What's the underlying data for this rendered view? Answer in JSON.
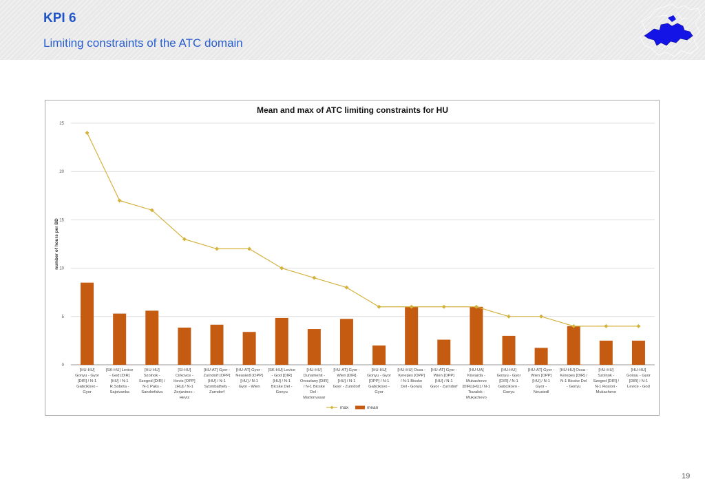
{
  "slide": {
    "title": "KPI 6",
    "subtitle": "Limiting constraints of the ATC domain",
    "page_number": "19"
  },
  "colors": {
    "max_line": "#d4b23e",
    "mean_bar": "#c55a11",
    "title_blue": "#1f55c8",
    "logo_blue": "#1414e6"
  },
  "logo": {
    "icon": "europe-map-icon"
  },
  "chart_data": {
    "type": "bar",
    "title": "Mean and max of ATC limiting constraints for HU",
    "ylabel": "number of hours per BD",
    "xlabel": "",
    "ylim": [
      0,
      25
    ],
    "yticks": [
      0,
      5,
      10,
      15,
      20,
      25
    ],
    "grid": true,
    "legend_position": "bottom",
    "categories": [
      [
        "[HU-HU]",
        "Gonyu - Gyor",
        "[DIR] / N-1",
        "Gabcikovo -",
        "Gyor"
      ],
      [
        "[SK-HU] Levice",
        "- God [DIR]",
        "[HU] / N-1",
        "R.Sobota -",
        "Sajoivanka"
      ],
      [
        "[HU-HU]",
        "Szolnok -",
        "Szeged [DIR] /",
        "N-1 Paks -",
        "Sandorfalva"
      ],
      [
        "[SI-HU]",
        "Cirkovce -",
        "Heviz [OPP]",
        "[HU] / N-1",
        "Zerjavinec -",
        "Heviz"
      ],
      [
        "[HU-AT] Gyor -",
        "Zurndorf [OPP]",
        "[HU] / N-1",
        "Szombathely -",
        "Zurndorf"
      ],
      [
        "[HU-AT] Gyor -",
        "Neusiedl [OPP]",
        "[HU] / N-1",
        "Gyor - Wien"
      ],
      [
        "[SK-HU] Levice",
        "- God [DIR]",
        "[HU] / N-1",
        "Bicske Del -",
        "Gonyu"
      ],
      [
        "[HU-HU]",
        "Dunamenti -",
        "Oroszlany [DIR]",
        "/ N-1 Bicske",
        "Del -",
        "Martonvasar"
      ],
      [
        "[HU-AT] Gyor -",
        "Wien [DIR]",
        "[HU] / N-1",
        "Gyor - Zurndorf"
      ],
      [
        "[HU-HU]",
        "Gonyu - Gyor",
        "[OPP] / N-1",
        "Gabcikovo -",
        "Gyor"
      ],
      [
        "[HU-HU] Ocsa -",
        "Kerepes [OPP]",
        "/ N-1 Bicske",
        "Del - Gonyu"
      ],
      [
        "[HU-AT] Gyor -",
        "Wien [OPP]",
        "[HU] / N-1",
        "Gyor - Zurndorf"
      ],
      [
        "[HU-UA]",
        "Kisvarda -",
        "Mukachevo",
        "[DIR] [HU] / N-1",
        "Tiszalok -",
        "Mukachevo"
      ],
      [
        "[HU-HU]",
        "Gonyu - Gyor",
        "[DIR] / N-1",
        "Gabcikovo -",
        "Gonyu"
      ],
      [
        "[HU-AT] Gyor -",
        "Wien [OPP]",
        "[HU] / N-1",
        "Gyor -",
        "Neusiedl"
      ],
      [
        "[HU-HU] Ocsa -",
        "Kerepes [DIR] /",
        "N-1 Bicske Del",
        "- Gonyu"
      ],
      [
        "[HU-HU]",
        "Szolnok -",
        "Szeged [DIR] /",
        "N-1 Rosiori -",
        "Mukachevo"
      ],
      [
        "[HU-HU]",
        "Gonyu - Gyor",
        "[DIR] / N-1",
        "Levice - God"
      ]
    ],
    "series": [
      {
        "name": "max",
        "type": "line",
        "values": [
          24,
          17,
          16,
          13,
          12,
          12,
          10,
          9,
          8,
          6,
          6,
          6,
          6,
          5,
          5,
          4,
          4,
          4
        ]
      },
      {
        "name": "mean",
        "type": "bar",
        "values": [
          8.5,
          5.3,
          5.6,
          3.85,
          4.15,
          3.4,
          4.85,
          3.7,
          4.75,
          2.0,
          6.0,
          2.6,
          6.0,
          3.0,
          1.75,
          4.0,
          2.5,
          2.5
        ]
      }
    ]
  }
}
